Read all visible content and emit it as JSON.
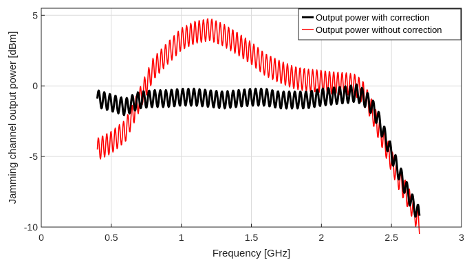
{
  "chart_data": {
    "type": "line",
    "title": "",
    "xlabel": "Frequency [GHz]",
    "ylabel": "Jamming channel output power [dBm]",
    "xlim": [
      0,
      3
    ],
    "ylim": [
      -10,
      5.5
    ],
    "xticks": [
      0,
      0.5,
      1,
      1.5,
      2,
      2.5,
      3
    ],
    "xtick_labels": [
      "0",
      "0.5",
      "1",
      "1.5",
      "2",
      "2.5",
      "3"
    ],
    "yticks": [
      -10,
      -5,
      0,
      5
    ],
    "ytick_labels": [
      "-10",
      "-5",
      "0",
      "5"
    ],
    "grid": true,
    "legend_position": "top-right",
    "series": [
      {
        "name": "Output power with correction",
        "color": "#000000",
        "ripple_amp_dB": 0.6,
        "ripple_period_GHz": 0.04,
        "x": [
          0.4,
          0.5,
          0.6,
          0.7,
          0.8,
          0.9,
          1.0,
          1.1,
          1.2,
          1.3,
          1.4,
          1.5,
          1.6,
          1.7,
          1.8,
          1.9,
          2.0,
          2.1,
          2.2,
          2.25,
          2.3,
          2.35,
          2.4,
          2.45,
          2.5,
          2.55,
          2.6,
          2.65,
          2.7
        ],
        "y": [
          -0.9,
          -1.2,
          -1.5,
          -1.0,
          -0.9,
          -0.9,
          -0.8,
          -0.8,
          -0.9,
          -1.0,
          -0.9,
          -0.8,
          -0.8,
          -1.0,
          -1.0,
          -1.0,
          -0.8,
          -0.7,
          -0.6,
          -0.5,
          -0.8,
          -1.3,
          -2.2,
          -3.5,
          -4.8,
          -6.0,
          -7.2,
          -8.3,
          -9.2
        ]
      },
      {
        "name": "Output power without correction",
        "color": "#ff0000",
        "ripple_amp_dB": 0.8,
        "ripple_period_GHz": 0.03,
        "x": [
          0.4,
          0.5,
          0.6,
          0.7,
          0.8,
          0.9,
          1.0,
          1.1,
          1.2,
          1.3,
          1.4,
          1.5,
          1.6,
          1.7,
          1.8,
          1.9,
          2.0,
          2.1,
          2.2,
          2.25,
          2.3,
          2.35,
          2.4,
          2.45,
          2.5,
          2.55,
          2.6,
          2.65,
          2.7
        ],
        "y": [
          -4.5,
          -4.0,
          -3.2,
          -1.0,
          1.2,
          2.3,
          3.3,
          3.8,
          4.0,
          3.6,
          3.0,
          2.3,
          1.5,
          1.0,
          0.6,
          0.4,
          0.3,
          0.2,
          0.1,
          0.0,
          -0.5,
          -1.5,
          -2.8,
          -4.0,
          -5.3,
          -6.5,
          -7.5,
          -8.6,
          -9.8
        ]
      }
    ]
  }
}
